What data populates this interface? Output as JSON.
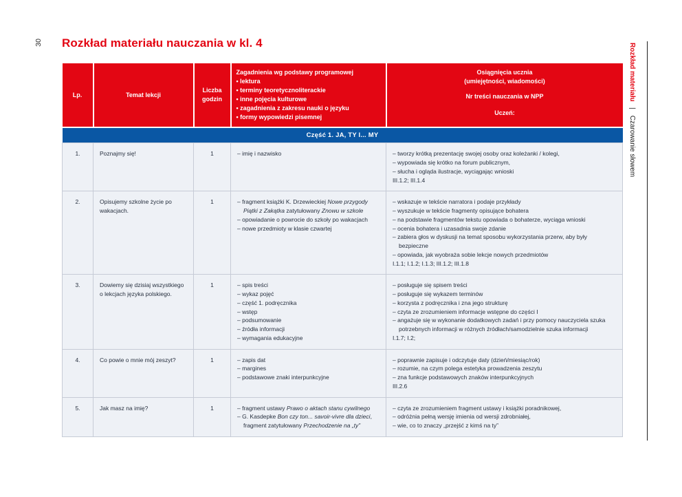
{
  "colors": {
    "accent_red": "#e30613",
    "banner_blue": "#0a57a4",
    "row_background": "#eef1f6"
  },
  "page": {
    "number": "30",
    "title": "Rozkład materiału nauczania w kl. 4",
    "sidebar": {
      "primary": "Rozkład materiału",
      "separator": "|",
      "secondary": "Czarowanie słowem"
    }
  },
  "table": {
    "header": {
      "lp": "Lp.",
      "topic": "Temat lekcji",
      "hours": "Liczba godzin",
      "issues_title": "Zagadnienia wg podstawy programowej",
      "issues_bullets": [
        "lektura",
        "terminy teoretycznoliterackie",
        "inne pojęcia kulturowe",
        "zagadnienia z zakresu nauki o języku",
        "formy wypowiedzi pisemnej"
      ],
      "achievements_title": "Osiągnięcia ucznia",
      "achievements_subtitle": "(umiejętności, wiadomości)",
      "npp_line": "Nr treści nauczania w NPP",
      "student_line": "Uczeń:"
    },
    "section_banner": "Część 1. JA, TY I... MY",
    "rows": [
      {
        "lp": "1.",
        "topic": "Poznajmy się!",
        "hours": "1",
        "issues": [
          "– imię i nazwisko"
        ],
        "achievements": [
          "– tworzy krótką prezentację swojej osoby oraz koleżanki / kolegi,",
          "– wypowiada się krótko na forum publicznym,",
          "– słucha i ogląda ilustracje, wyciągając wnioski",
          "III.1.2; III.1.4"
        ]
      },
      {
        "lp": "2.",
        "topic": "Opisujemy szkolne życie po wakacjach.",
        "hours": "1",
        "issues": [
          "– fragment książki K. Drzewieckiej *Nowe przygody Piątki z Zakątka* zatytułowany *Znowu w szkole*",
          "– opowiadanie o powrocie do szkoły po wakacjach",
          "– nowe przedmioty w klasie czwartej"
        ],
        "achievements": [
          "– wskazuje w tekście narratora i podaje przykłady",
          "– wyszukuje w tekście fragmenty opisujące bohatera",
          "– na podstawie fragmentów tekstu opowiada o bohaterze, wyciąga wnioski",
          "– ocenia bohatera i uzasadnia swoje zdanie",
          "– zabiera głos w dyskusji na temat sposobu wykorzystania przerw, aby były bezpieczne",
          "– opowiada, jak wyobraża sobie lekcje nowych przedmiotów",
          "I.1.1; I.1.2; I.1.3; III.1.2; III.1.8"
        ]
      },
      {
        "lp": "3.",
        "topic": "Dowiemy się dzisiaj wszystkiego o lekcjach języka polskiego.",
        "hours": "1",
        "issues": [
          "– spis treści",
          "– wykaz pojęć",
          "– część 1. podręcznika",
          "– wstęp",
          "– podsumowanie",
          "– źródła informacji",
          "– wymagania edukacyjne"
        ],
        "achievements": [
          "– posługuje się spisem treści",
          "– posługuje się wykazem terminów",
          "– korzysta z podręcznika i zna jego strukturę",
          "– czyta ze zrozumieniem informacje wstępne do części I",
          "– angażuje się w wykonanie dodatkowych zadań i przy pomocy nauczyciela szuka potrzebnych informacji w różnych źródłach/samodzielnie szuka informacji",
          "I.1.7; I.2;"
        ]
      },
      {
        "lp": "4.",
        "topic": "Co powie o mnie mój zeszyt?",
        "hours": "1",
        "issues": [
          "– zapis dat",
          "– margines",
          "– podstawowe znaki interpunkcyjne"
        ],
        "achievements": [
          "– poprawnie zapisuje i odczytuje daty (dzień/miesiąc/rok)",
          "– rozumie, na czym polega estetyka prowadzenia zeszytu",
          "– zna funkcje podstawowych znaków interpunkcyjnych",
          "III.2.6"
        ]
      },
      {
        "lp": "5.",
        "topic": "Jak masz na imię?",
        "hours": "1",
        "issues": [
          "– fragment ustawy *Prawo o aktach stanu cywilnego*",
          "– G. Kasdepke *Bon czy ton... savoir-vivre dla dzieci*, fragment zatytułowany *Przechodzenie na „ty”*"
        ],
        "achievements": [
          "– czyta ze zrozumieniem fragment ustawy i książki poradnikowej,",
          "– odróżnia pełną wersję imienia od wersji zdrobniałej,",
          "– wie, co to znaczy „przejść z kimś na ty”"
        ]
      }
    ]
  }
}
